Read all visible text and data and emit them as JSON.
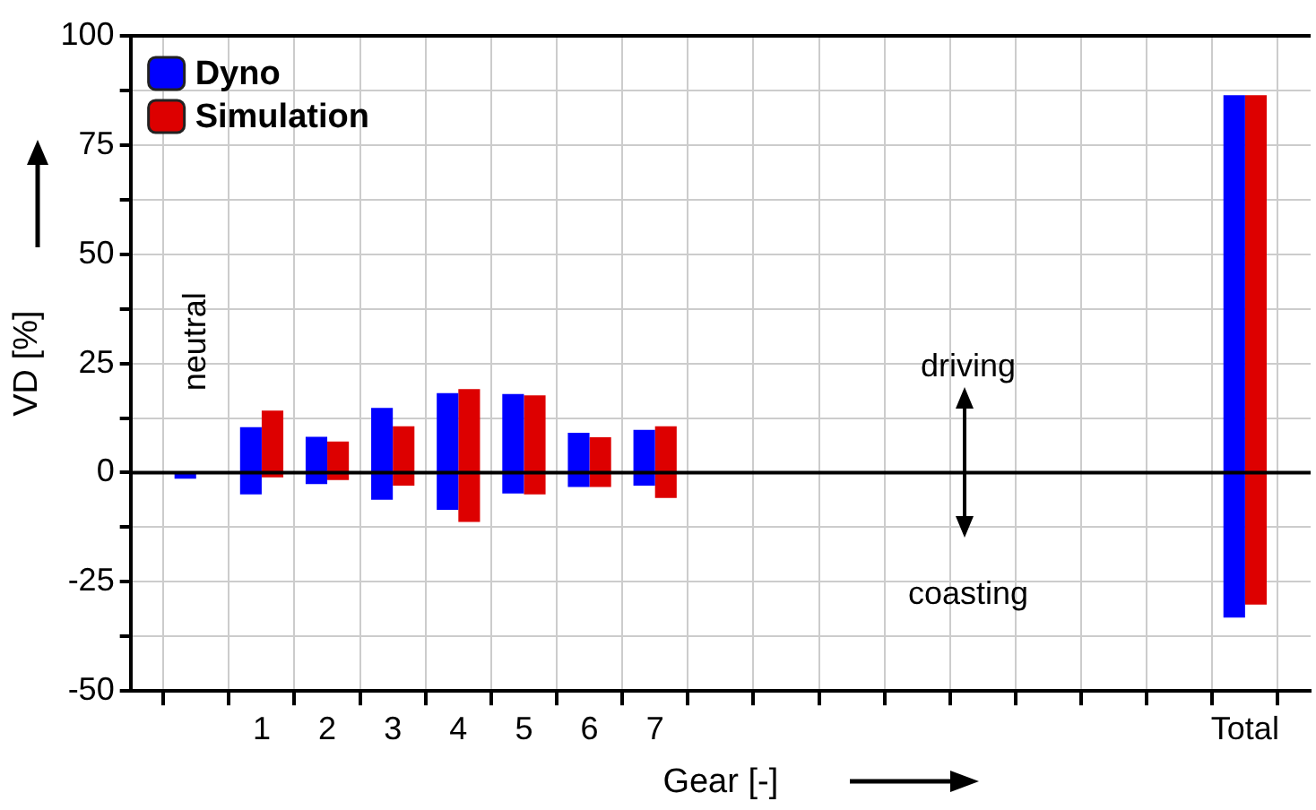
{
  "chart_data": {
    "type": "bar",
    "categories": [
      null,
      null,
      "1",
      "2",
      "3",
      "4",
      "5",
      "6",
      "7",
      null,
      null,
      null,
      null,
      null,
      null,
      null,
      null,
      "Total",
      null
    ],
    "series": [
      {
        "name": "Dyno",
        "color": "#0000ff",
        "base": [
          null,
          -1.4,
          -5,
          -2.6,
          -6.2,
          -8.5,
          -4.8,
          -3.3,
          -3,
          null,
          null,
          null,
          null,
          null,
          null,
          null,
          null,
          -33.2,
          null
        ],
        "values": [
          null,
          1.4,
          15.4,
          10.8,
          21,
          26.7,
          22.8,
          12.4,
          12.8,
          null,
          null,
          null,
          null,
          null,
          null,
          null,
          null,
          119.6,
          null
        ]
      },
      {
        "name": "Simulation",
        "color": "#dd0000",
        "base": [
          null,
          null,
          -1.1,
          -1.7,
          -3,
          -11.3,
          -5,
          -3.3,
          -5.8,
          null,
          null,
          null,
          null,
          null,
          null,
          null,
          null,
          -30.2,
          null
        ],
        "values": [
          null,
          null,
          15.3,
          8.8,
          13.6,
          30.4,
          22.7,
          11.4,
          16.4,
          null,
          null,
          null,
          null,
          null,
          null,
          null,
          null,
          116.6,
          null
        ]
      }
    ],
    "xlabel": "Gear [-]",
    "ylabel": "VD [%]",
    "ylim": [
      -50,
      100
    ],
    "yticks": [
      -50,
      {
        "value": -37.5,
        "label": null
      },
      -25,
      {
        "value": -12.5,
        "label": null
      },
      0,
      {
        "value": 12.5,
        "label": null
      },
      25,
      {
        "value": 37.5,
        "label": null
      },
      50,
      {
        "value": 62.5,
        "label": null
      },
      75,
      {
        "value": 87.5,
        "label": null
      },
      100
    ],
    "ref_lines": [
      {
        "axis": "y",
        "value": 0,
        "color": "#000000"
      }
    ],
    "annotations": [
      "neutral",
      "driving",
      "coasting"
    ],
    "grid": true,
    "legend": "top left"
  }
}
